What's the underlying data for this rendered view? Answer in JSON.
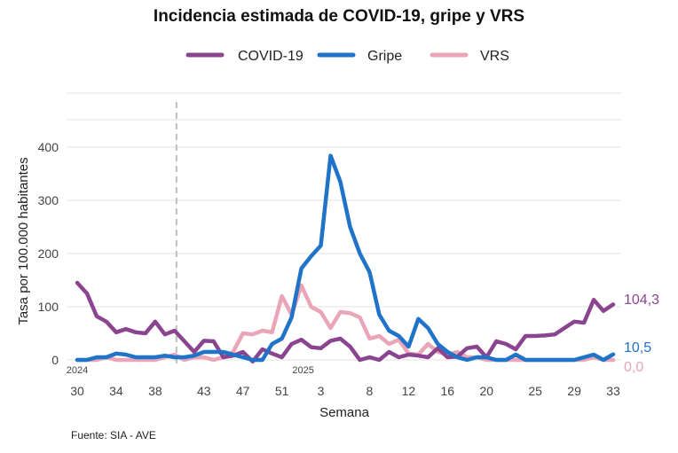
{
  "chart_data": {
    "type": "line",
    "title": "Incidencia estimada de COVID-19, gripe y VRS",
    "xlabel": "Semana",
    "ylabel": "Tasa por 100.000 habitantes",
    "ylim": [
      0,
      400
    ],
    "yticks": [
      0,
      100,
      200,
      300,
      400
    ],
    "grid": true,
    "legend_position": "top",
    "source": "Fuente: SIA - AVE",
    "year_labels": [
      {
        "label": "2024",
        "index": 0
      },
      {
        "label": "2025",
        "index": 21
      }
    ],
    "season_divider_index": 10,
    "x_tick_labels": [
      {
        "index": 0,
        "label": "30"
      },
      {
        "index": 4,
        "label": "34"
      },
      {
        "index": 8,
        "label": "38"
      },
      {
        "index": 13,
        "label": "43"
      },
      {
        "index": 17,
        "label": "47"
      },
      {
        "index": 21,
        "label": "51"
      },
      {
        "index": 25,
        "label": "3"
      },
      {
        "index": 30,
        "label": "8"
      },
      {
        "index": 34,
        "label": "12"
      },
      {
        "index": 38,
        "label": "16"
      },
      {
        "index": 42,
        "label": "20"
      },
      {
        "index": 47,
        "label": "25"
      },
      {
        "index": 51,
        "label": "29"
      },
      {
        "index": 55,
        "label": "33"
      }
    ],
    "x": [
      30,
      31,
      32,
      33,
      34,
      35,
      36,
      37,
      38,
      39,
      40,
      41,
      42,
      43,
      44,
      45,
      46,
      47,
      48,
      49,
      50,
      51,
      52,
      1,
      2,
      3,
      4,
      5,
      6,
      7,
      8,
      9,
      10,
      11,
      12,
      13,
      14,
      15,
      16,
      17,
      18,
      19,
      20,
      21,
      22,
      23,
      24,
      25,
      26,
      27,
      28,
      29,
      30,
      31,
      32,
      33
    ],
    "series": [
      {
        "name": "COVID-19",
        "color": "#8b4590",
        "end_label": "104,3",
        "values": [
          145,
          125,
          82,
          72,
          52,
          58,
          52,
          50,
          72,
          48,
          55,
          35,
          15,
          36,
          35,
          5,
          8,
          15,
          -3,
          20,
          12,
          5,
          30,
          38,
          24,
          22,
          36,
          40,
          25,
          0,
          5,
          0,
          15,
          5,
          10,
          8,
          5,
          22,
          5,
          6,
          22,
          25,
          5,
          35,
          30,
          20,
          45,
          45,
          46,
          48,
          60,
          72,
          70,
          113,
          92,
          104.3
        ]
      },
      {
        "name": "Gripe",
        "color": "#1f73c8",
        "end_label": "10,5",
        "values": [
          0,
          0,
          5,
          5,
          12,
          10,
          5,
          5,
          5,
          8,
          5,
          5,
          8,
          15,
          15,
          15,
          10,
          5,
          0,
          0,
          30,
          40,
          80,
          172,
          195,
          215,
          384,
          335,
          250,
          200,
          165,
          85,
          55,
          45,
          25,
          77,
          60,
          30,
          15,
          5,
          0,
          5,
          5,
          0,
          0,
          10,
          0,
          0,
          0,
          0,
          0,
          0,
          5,
          10,
          0,
          10.5
        ]
      },
      {
        "name": "VRS",
        "color": "#eaa5b8",
        "end_label": "0,0",
        "values": [
          0,
          0,
          0,
          5,
          0,
          0,
          0,
          0,
          0,
          5,
          10,
          0,
          5,
          5,
          0,
          5,
          15,
          50,
          48,
          55,
          52,
          120,
          85,
          140,
          100,
          90,
          60,
          90,
          88,
          80,
          40,
          45,
          30,
          38,
          12,
          10,
          30,
          15,
          10,
          15,
          5,
          5,
          0,
          0,
          0,
          0,
          0,
          0,
          0,
          0,
          0,
          0,
          0,
          5,
          0,
          0
        ]
      }
    ]
  }
}
